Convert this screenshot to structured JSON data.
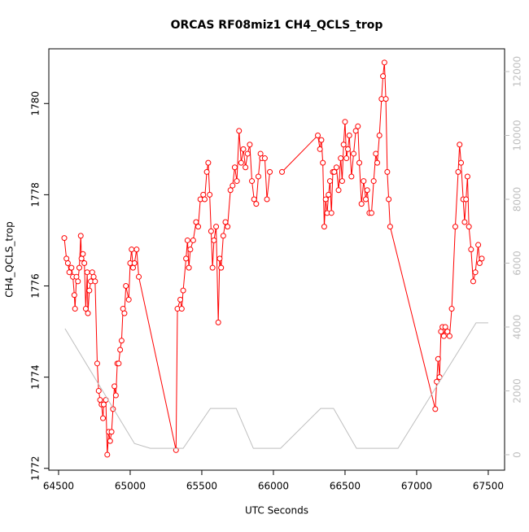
{
  "chart_data": {
    "type": "line",
    "title": "ORCAS RF08miz1 CH4_QCLS_trop",
    "x_label": "UTC Seconds",
    "y_label": "CH4_QCLS_trop",
    "xlim": [
      64432,
      67614
    ],
    "xticks": [
      64500,
      65000,
      65500,
      66000,
      66500,
      67000,
      67500
    ],
    "ylim": [
      1771.96,
      1781.2
    ],
    "yticks": [
      1772,
      1774,
      1776,
      1778,
      1780
    ],
    "y2lim": [
      -484,
      12713
    ],
    "y2ticks": [
      0,
      2000,
      4000,
      6000,
      8000,
      10000,
      12000
    ],
    "series": [
      {
        "color": "#ff0000",
        "markers": true,
        "x": [
          64540,
          64555,
          64565,
          64575,
          64590,
          64600,
          64610,
          64615,
          64625,
          64635,
          64645,
          64655,
          64660,
          64670,
          64680,
          64690,
          64700,
          64705,
          64715,
          64725,
          64735,
          64745,
          64755,
          64770,
          64780,
          64790,
          64800,
          64810,
          64815,
          64830,
          64840,
          64850,
          64860,
          64870,
          64880,
          64890,
          64900,
          64910,
          64920,
          64930,
          64940,
          64950,
          64960,
          64970,
          64990,
          65000,
          65010,
          65020,
          65030,
          65045,
          65060,
          65320,
          65330,
          65350,
          65360,
          65370,
          65390,
          65400,
          65410,
          65420,
          65440,
          65460,
          65475,
          65490,
          65510,
          65520,
          65535,
          65545,
          65555,
          65565,
          65575,
          65585,
          65600,
          65615,
          65625,
          65635,
          65650,
          65665,
          65680,
          65700,
          65715,
          65730,
          65745,
          65760,
          65775,
          65790,
          65805,
          65820,
          65835,
          65850,
          65865,
          65880,
          65895,
          65910,
          65920,
          65940,
          65955,
          65975,
          null,
          66060,
          66310,
          66325,
          66335,
          66345,
          66355,
          66365,
          66375,
          66385,
          66395,
          66405,
          66415,
          66425,
          66440,
          66455,
          66470,
          66480,
          66490,
          66500,
          66510,
          66520,
          66530,
          66545,
          66560,
          66575,
          66590,
          66600,
          66615,
          66630,
          66645,
          66655,
          66670,
          66685,
          66700,
          66715,
          66725,
          66740,
          66755,
          66765,
          66775,
          66785,
          66795,
          66805,
          66815,
          67130,
          67140,
          67150,
          67160,
          67170,
          67180,
          67190,
          67200,
          67215,
          67230,
          67245,
          67270,
          67290,
          67300,
          67310,
          67325,
          67335,
          67345,
          67355,
          67365,
          67380,
          67395,
          67410,
          67430,
          67440,
          67455
        ],
        "values": [
          1777.05,
          1776.6,
          1776.5,
          1776.3,
          1776.4,
          1776.2,
          1775.8,
          1775.5,
          1776.2,
          1776.1,
          1776.4,
          1777.1,
          1776.6,
          1776.7,
          1776.5,
          1775.5,
          1776.3,
          1775.4,
          1775.9,
          1776.1,
          1776.3,
          1776.2,
          1776.1,
          1774.3,
          1773.7,
          1773.5,
          1773.4,
          1773.1,
          1773.4,
          1773.5,
          1772.3,
          1772.8,
          1772.6,
          1772.8,
          1773.3,
          1773.8,
          1773.6,
          1774.3,
          1774.3,
          1774.6,
          1774.8,
          1775.5,
          1775.4,
          1776.0,
          1775.7,
          1776.5,
          1776.8,
          1776.4,
          1776.5,
          1776.8,
          1776.2,
          1772.4,
          1775.5,
          1775.7,
          1775.5,
          1775.9,
          1776.6,
          1777.0,
          1776.4,
          1776.8,
          1777.0,
          1777.4,
          1777.3,
          1777.9,
          1778.0,
          1777.9,
          1778.5,
          1778.7,
          1778.0,
          1777.2,
          1776.4,
          1777.0,
          1777.3,
          1775.2,
          1776.6,
          1776.4,
          1777.1,
          1777.4,
          1777.3,
          1778.1,
          1778.2,
          1778.6,
          1778.3,
          1779.4,
          1778.7,
          1779.0,
          1778.6,
          1778.9,
          1779.1,
          1778.3,
          1777.9,
          1777.8,
          1778.4,
          1778.9,
          1778.8,
          1778.8,
          1777.9,
          1778.5,
          null,
          1778.5,
          1779.3,
          1779.0,
          1779.2,
          1778.7,
          1777.3,
          1777.9,
          1777.6,
          1778.0,
          1778.3,
          1777.6,
          1778.5,
          1778.5,
          1778.6,
          1778.1,
          1778.8,
          1778.3,
          1779.1,
          1779.6,
          1778.8,
          1779.0,
          1779.3,
          1778.4,
          1778.9,
          1779.4,
          1779.5,
          1778.7,
          1777.8,
          1778.3,
          1777.9,
          1778.1,
          1777.6,
          1777.6,
          1778.3,
          1778.9,
          1778.7,
          1779.3,
          1780.1,
          1780.6,
          1780.9,
          1780.1,
          1778.5,
          1777.9,
          1777.3,
          1773.3,
          1773.9,
          1774.4,
          1774.0,
          1775.0,
          1775.1,
          1774.9,
          1775.1,
          1775.0,
          1774.9,
          1775.5,
          1777.3,
          1778.5,
          1779.1,
          1778.7,
          1777.9,
          1777.4,
          1777.9,
          1778.4,
          1777.3,
          1776.8,
          1776.1,
          1776.3,
          1776.9,
          1776.5,
          1776.6
        ]
      },
      {
        "color": "#bebebe",
        "markers": false,
        "axis": "y2",
        "x": [
          64545,
          65030,
          65140,
          65370,
          65560,
          65740,
          65860,
          66050,
          66330,
          66420,
          66580,
          66870,
          67415,
          67500
        ],
        "values": [
          3950,
          350,
          200,
          200,
          1450,
          1450,
          200,
          200,
          1450,
          1450,
          200,
          200,
          4130,
          4130
        ]
      }
    ]
  }
}
